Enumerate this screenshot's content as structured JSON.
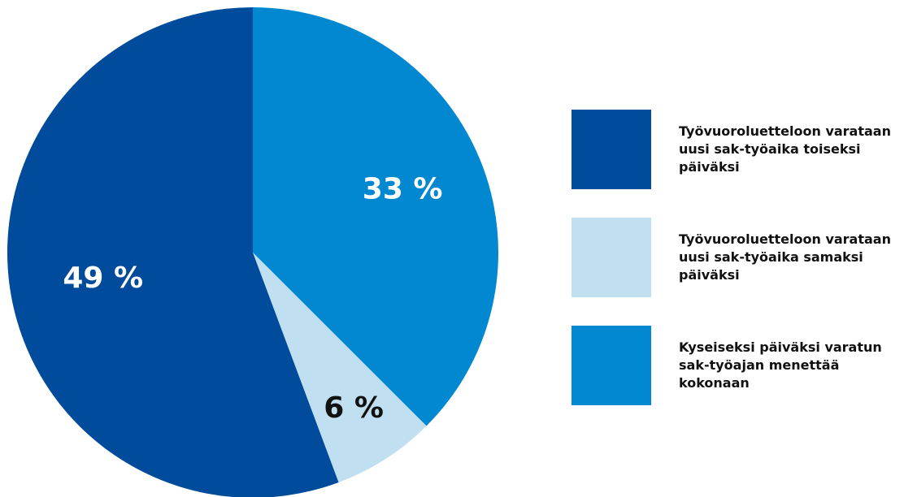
{
  "chart_data": {
    "type": "pie",
    "slices": [
      {
        "label": "33 %",
        "value": 33,
        "legend": "Kyseiseksi päiväksi varatun sak-työajan menettää kokonaan",
        "color": "#0288d1",
        "label_color": "#ffffff"
      },
      {
        "label": "6 %",
        "value": 6,
        "legend": "Työvuoroluetteloon varataan uusi sak-työaika samaksi päiväksi",
        "color": "#c0e0f2",
        "label_color": "#111111"
      },
      {
        "label": "49 %",
        "value": 49,
        "legend": "Työvuoroluetteloon varataan uusi sak-työaika toiseksi päiväksi",
        "color": "#004b9b",
        "label_color": "#ffffff"
      }
    ],
    "legend_order": [
      2,
      1,
      0
    ],
    "legend_placement": "right"
  }
}
